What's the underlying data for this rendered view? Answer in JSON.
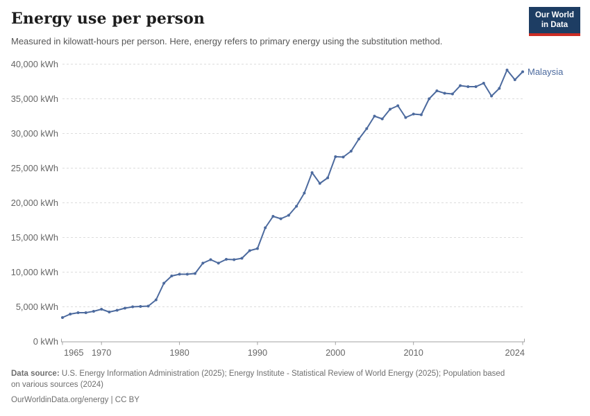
{
  "header": {
    "title": "Energy use per person",
    "subtitle": "Measured in kilowatt-hours per person. Here, energy refers to primary energy using the substitution method.",
    "logo": {
      "line1": "Our World",
      "line2": "in Data",
      "bg_color": "#1d3d63",
      "bar_color": "#cc2c24"
    }
  },
  "chart_data": {
    "type": "line",
    "title": "Energy use per person",
    "entity_label": "Malaysia",
    "unit": "kWh",
    "line_color": "#4C6A9E",
    "label_color": "#4C6A9E",
    "grid": "horizontal-dashed",
    "legend_position": "end-of-line",
    "ylim": [
      0,
      40000
    ],
    "ytick_step": 5000,
    "xticks": [
      1965,
      1970,
      1980,
      1990,
      2000,
      2010,
      2024
    ],
    "x": [
      1965,
      1966,
      1967,
      1968,
      1969,
      1970,
      1971,
      1972,
      1973,
      1974,
      1975,
      1976,
      1977,
      1978,
      1979,
      1980,
      1981,
      1982,
      1983,
      1984,
      1985,
      1986,
      1987,
      1988,
      1989,
      1990,
      1991,
      1992,
      1993,
      1994,
      1995,
      1996,
      1997,
      1998,
      1999,
      2000,
      2001,
      2002,
      2003,
      2004,
      2005,
      2006,
      2007,
      2008,
      2009,
      2010,
      2011,
      2012,
      2013,
      2014,
      2015,
      2016,
      2017,
      2018,
      2019,
      2020,
      2021,
      2022,
      2023,
      2024
    ],
    "values": [
      3450,
      3950,
      4150,
      4150,
      4350,
      4650,
      4250,
      4500,
      4800,
      5000,
      5050,
      5100,
      6000,
      8400,
      9450,
      9700,
      9700,
      9800,
      11300,
      11800,
      11300,
      11850,
      11800,
      12000,
      13100,
      13400,
      16400,
      18050,
      17700,
      18200,
      19500,
      21400,
      24350,
      22800,
      23600,
      26650,
      26600,
      27450,
      29200,
      30700,
      32500,
      32100,
      33500,
      34000,
      32300,
      32800,
      32700,
      35000,
      36150,
      35800,
      35700,
      36900,
      36750,
      36750,
      37250,
      35400,
      36500,
      39150,
      37750,
      38900
    ],
    "xlabel": "",
    "ylabel": ""
  },
  "footer": {
    "source_label": "Data source:",
    "source_line1": " U.S. Energy Information Administration (2025); Energy Institute - Statistical Review of World Energy (2025); Population based",
    "source_line2": "on various sources (2024)",
    "link_text": "OurWorldinData.org/energy | CC BY"
  }
}
